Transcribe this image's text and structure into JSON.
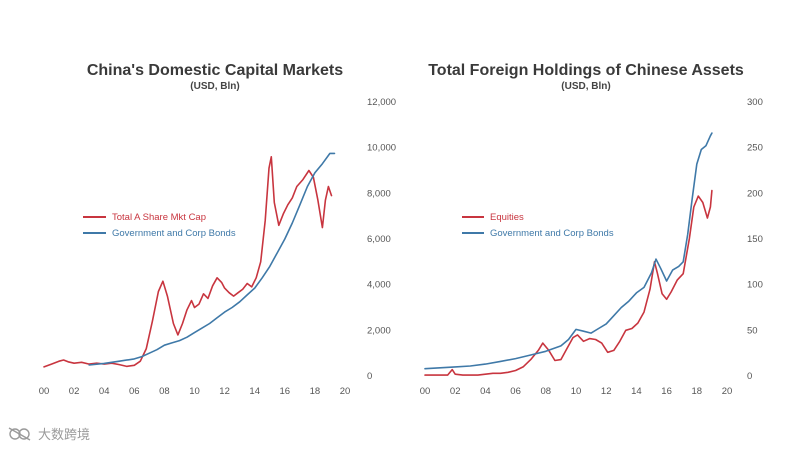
{
  "watermark": "大数跨境",
  "colors": {
    "red": "#c8353f",
    "blue": "#3f79a8"
  },
  "chart_data": [
    {
      "type": "line",
      "title": "China's Domestic Capital Markets",
      "subtitle": "(USD, Bln)",
      "x_tick_labels": [
        "00",
        "02",
        "04",
        "06",
        "08",
        "10",
        "12",
        "14",
        "16",
        "18",
        "20"
      ],
      "x_ticks": [
        0,
        2,
        4,
        6,
        8,
        10,
        12,
        14,
        16,
        18,
        20
      ],
      "xlim": [
        0,
        20
      ],
      "ylim": [
        0,
        12000
      ],
      "y_ticks": [
        0,
        2000,
        4000,
        6000,
        8000,
        10000,
        12000
      ],
      "y_tick_labels": [
        "0",
        "2,000",
        "4,000",
        "6,000",
        "8,000",
        "10,000",
        "12,000"
      ],
      "y_axis_side": "right",
      "legend_placement": "center-left",
      "grid": false,
      "series": [
        {
          "name": "Total A Share Mkt Cap",
          "color": "#c8353f",
          "points": [
            [
              0.0,
              400
            ],
            [
              0.5,
              520
            ],
            [
              1.0,
              650
            ],
            [
              1.3,
              700
            ],
            [
              1.6,
              620
            ],
            [
              2.0,
              560
            ],
            [
              2.5,
              600
            ],
            [
              3.0,
              520
            ],
            [
              3.5,
              560
            ],
            [
              4.0,
              520
            ],
            [
              4.5,
              560
            ],
            [
              5.0,
              500
            ],
            [
              5.5,
              420
            ],
            [
              6.0,
              470
            ],
            [
              6.4,
              650
            ],
            [
              6.8,
              1200
            ],
            [
              7.2,
              2400
            ],
            [
              7.6,
              3700
            ],
            [
              7.9,
              4150
            ],
            [
              8.2,
              3500
            ],
            [
              8.6,
              2300
            ],
            [
              8.9,
              1800
            ],
            [
              9.2,
              2300
            ],
            [
              9.5,
              2900
            ],
            [
              9.8,
              3300
            ],
            [
              10.0,
              3000
            ],
            [
              10.3,
              3150
            ],
            [
              10.6,
              3600
            ],
            [
              10.9,
              3400
            ],
            [
              11.2,
              3950
            ],
            [
              11.5,
              4300
            ],
            [
              11.8,
              4100
            ],
            [
              12.0,
              3850
            ],
            [
              12.3,
              3650
            ],
            [
              12.6,
              3500
            ],
            [
              12.9,
              3650
            ],
            [
              13.2,
              3800
            ],
            [
              13.5,
              4050
            ],
            [
              13.8,
              3900
            ],
            [
              14.1,
              4300
            ],
            [
              14.4,
              5000
            ],
            [
              14.7,
              6800
            ],
            [
              14.95,
              9100
            ],
            [
              15.1,
              9600
            ],
            [
              15.3,
              7600
            ],
            [
              15.6,
              6600
            ],
            [
              15.9,
              7100
            ],
            [
              16.2,
              7500
            ],
            [
              16.5,
              7800
            ],
            [
              16.8,
              8300
            ],
            [
              17.2,
              8600
            ],
            [
              17.6,
              9000
            ],
            [
              17.9,
              8700
            ],
            [
              18.2,
              7700
            ],
            [
              18.5,
              6500
            ],
            [
              18.7,
              7700
            ],
            [
              18.9,
              8300
            ],
            [
              19.1,
              7900
            ]
          ]
        },
        {
          "name": "Government and Corp Bonds",
          "color": "#3f79a8",
          "points": [
            [
              3.0,
              480
            ],
            [
              4.0,
              550
            ],
            [
              5.0,
              650
            ],
            [
              6.0,
              750
            ],
            [
              6.5,
              850
            ],
            [
              7.0,
              1000
            ],
            [
              7.5,
              1150
            ],
            [
              8.0,
              1350
            ],
            [
              8.5,
              1450
            ],
            [
              9.0,
              1550
            ],
            [
              9.5,
              1700
            ],
            [
              10.0,
              1900
            ],
            [
              10.5,
              2100
            ],
            [
              11.0,
              2300
            ],
            [
              11.5,
              2550
            ],
            [
              12.0,
              2800
            ],
            [
              12.5,
              3000
            ],
            [
              13.0,
              3250
            ],
            [
              13.5,
              3550
            ],
            [
              14.0,
              3850
            ],
            [
              14.5,
              4300
            ],
            [
              15.0,
              4800
            ],
            [
              15.5,
              5400
            ],
            [
              16.0,
              6000
            ],
            [
              16.5,
              6700
            ],
            [
              17.0,
              7500
            ],
            [
              17.5,
              8300
            ],
            [
              18.0,
              8900
            ],
            [
              18.5,
              9300
            ],
            [
              19.0,
              9750
            ],
            [
              19.3,
              9750
            ]
          ]
        }
      ]
    },
    {
      "type": "line",
      "title": "Total Foreign Holdings of Chinese Assets",
      "subtitle": "(USD, Bln)",
      "x_tick_labels": [
        "00",
        "02",
        "04",
        "06",
        "08",
        "10",
        "12",
        "14",
        "16",
        "18",
        "20"
      ],
      "x_ticks": [
        0,
        2,
        4,
        6,
        8,
        10,
        12,
        14,
        16,
        18,
        20
      ],
      "xlim": [
        0,
        20
      ],
      "ylim": [
        0,
        300
      ],
      "y_ticks": [
        0,
        50,
        100,
        150,
        200,
        250,
        300
      ],
      "y_tick_labels": [
        "0",
        "50",
        "100",
        "150",
        "200",
        "250",
        "300"
      ],
      "y_axis_side": "right",
      "legend_placement": "center-left",
      "grid": false,
      "series": [
        {
          "name": "Equities",
          "color": "#c8353f",
          "points": [
            [
              0.0,
              1
            ],
            [
              0.5,
              1
            ],
            [
              1.0,
              1
            ],
            [
              1.5,
              1
            ],
            [
              1.8,
              7
            ],
            [
              2.0,
              2
            ],
            [
              2.5,
              1
            ],
            [
              3.0,
              1
            ],
            [
              3.5,
              1
            ],
            [
              4.0,
              2
            ],
            [
              4.5,
              3
            ],
            [
              5.0,
              3
            ],
            [
              5.5,
              4
            ],
            [
              6.0,
              6
            ],
            [
              6.5,
              10
            ],
            [
              7.0,
              18
            ],
            [
              7.5,
              28
            ],
            [
              7.8,
              36
            ],
            [
              8.2,
              28
            ],
            [
              8.6,
              17
            ],
            [
              9.0,
              18
            ],
            [
              9.4,
              30
            ],
            [
              9.8,
              42
            ],
            [
              10.1,
              45
            ],
            [
              10.5,
              38
            ],
            [
              10.9,
              41
            ],
            [
              11.3,
              40
            ],
            [
              11.7,
              36
            ],
            [
              12.1,
              26
            ],
            [
              12.5,
              28
            ],
            [
              12.9,
              38
            ],
            [
              13.3,
              50
            ],
            [
              13.7,
              52
            ],
            [
              14.1,
              58
            ],
            [
              14.5,
              70
            ],
            [
              14.9,
              95
            ],
            [
              15.2,
              125
            ],
            [
              15.4,
              112
            ],
            [
              15.7,
              90
            ],
            [
              16.0,
              84
            ],
            [
              16.3,
              92
            ],
            [
              16.7,
              105
            ],
            [
              17.1,
              112
            ],
            [
              17.5,
              150
            ],
            [
              17.8,
              185
            ],
            [
              18.1,
              197
            ],
            [
              18.4,
              190
            ],
            [
              18.7,
              173
            ],
            [
              18.9,
              185
            ],
            [
              19.0,
              203
            ]
          ]
        },
        {
          "name": "Government and Corp Bonds",
          "color": "#3f79a8",
          "points": [
            [
              0.0,
              8
            ],
            [
              1.0,
              9
            ],
            [
              2.0,
              10
            ],
            [
              3.0,
              11
            ],
            [
              4.0,
              13
            ],
            [
              5.0,
              16
            ],
            [
              6.0,
              19
            ],
            [
              7.0,
              23
            ],
            [
              8.0,
              27
            ],
            [
              9.0,
              33
            ],
            [
              9.5,
              40
            ],
            [
              10.0,
              51
            ],
            [
              10.5,
              49
            ],
            [
              11.0,
              47
            ],
            [
              11.5,
              52
            ],
            [
              12.0,
              57
            ],
            [
              12.5,
              66
            ],
            [
              13.0,
              75
            ],
            [
              13.5,
              82
            ],
            [
              14.0,
              91
            ],
            [
              14.5,
              97
            ],
            [
              15.0,
              113
            ],
            [
              15.3,
              128
            ],
            [
              15.6,
              118
            ],
            [
              16.0,
              104
            ],
            [
              16.4,
              116
            ],
            [
              16.8,
              120
            ],
            [
              17.1,
              125
            ],
            [
              17.4,
              155
            ],
            [
              17.7,
              195
            ],
            [
              18.0,
              232
            ],
            [
              18.3,
              248
            ],
            [
              18.6,
              252
            ],
            [
              18.9,
              263
            ],
            [
              19.0,
              266
            ]
          ]
        }
      ]
    }
  ]
}
